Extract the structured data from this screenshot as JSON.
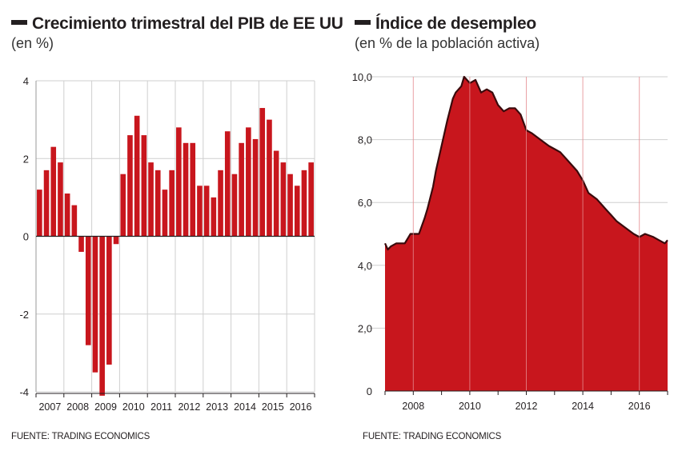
{
  "chart_data": [
    {
      "type": "bar",
      "title": "Crecimiento trimestral del PIB de EE UU",
      "subtitle": "(en %)",
      "source": "FUENTE: TRADING ECONOMICS",
      "ylim": [
        -4,
        4
      ],
      "y_ticks": [
        "4",
        "2",
        "0",
        "-2",
        "-4"
      ],
      "x_ticks": [
        "2007",
        "2008",
        "2009",
        "2010",
        "2011",
        "2012",
        "2013",
        "2014",
        "2015",
        "2016"
      ],
      "grid": true,
      "bar_color": "#c8161d",
      "values": [
        1.2,
        1.7,
        2.3,
        1.9,
        1.1,
        0.8,
        -0.4,
        -2.8,
        -3.5,
        -4.1,
        -3.3,
        -0.2,
        1.6,
        2.6,
        3.1,
        2.6,
        1.9,
        1.7,
        1.2,
        1.7,
        2.8,
        2.4,
        2.4,
        1.3,
        1.3,
        1.0,
        1.7,
        2.7,
        1.6,
        2.4,
        2.8,
        2.5,
        3.3,
        3.0,
        2.2,
        1.9,
        1.6,
        1.3,
        1.7,
        1.9
      ]
    },
    {
      "type": "area",
      "title": "Índice de desempleo",
      "subtitle": "(en % de la población activa)",
      "source": "FUENTE: TRADING ECONOMICS",
      "ylim": [
        0,
        10
      ],
      "xlim": [
        2007,
        2017
      ],
      "y_ticks": [
        "10,0",
        "8,0",
        "6,0",
        "4,0",
        "2,0",
        "0"
      ],
      "x_ticks": [
        "2008",
        "2010",
        "2012",
        "2014",
        "2016"
      ],
      "grid": true,
      "fill_color": "#c8161d",
      "line_color": "#3a0a0c",
      "x": [
        2007.0,
        2007.1,
        2007.2,
        2007.4,
        2007.5,
        2007.7,
        2007.9,
        2008.0,
        2008.2,
        2008.4,
        2008.5,
        2008.7,
        2008.8,
        2009.0,
        2009.2,
        2009.4,
        2009.5,
        2009.7,
        2009.8,
        2010.0,
        2010.2,
        2010.4,
        2010.6,
        2010.8,
        2011.0,
        2011.2,
        2011.4,
        2011.6,
        2011.8,
        2012.0,
        2012.2,
        2012.5,
        2012.8,
        2013.0,
        2013.2,
        2013.5,
        2013.8,
        2014.0,
        2014.2,
        2014.5,
        2014.8,
        2015.0,
        2015.2,
        2015.5,
        2015.8,
        2016.0,
        2016.2,
        2016.5,
        2016.7,
        2016.9,
        2017.0
      ],
      "y": [
        4.7,
        4.5,
        4.6,
        4.7,
        4.7,
        4.7,
        5.0,
        5.0,
        5.0,
        5.5,
        5.8,
        6.5,
        7.0,
        7.8,
        8.6,
        9.3,
        9.5,
        9.7,
        10.0,
        9.8,
        9.9,
        9.5,
        9.6,
        9.5,
        9.1,
        8.9,
        9.0,
        9.0,
        8.8,
        8.3,
        8.2,
        8.0,
        7.8,
        7.7,
        7.6,
        7.3,
        7.0,
        6.7,
        6.3,
        6.1,
        5.8,
        5.6,
        5.4,
        5.2,
        5.0,
        4.9,
        5.0,
        4.9,
        4.8,
        4.7,
        4.8
      ]
    }
  ]
}
